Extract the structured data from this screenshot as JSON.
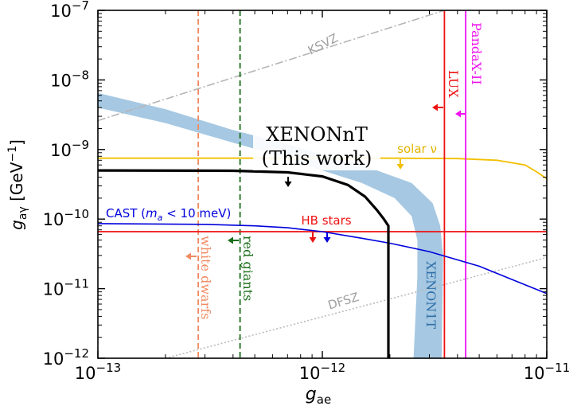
{
  "chart_data": {
    "type": "line",
    "xlabel_main": "g",
    "xlabel_sub": "ae",
    "ylabel_main": "g",
    "ylabel_sub": "aγ",
    "ylabel_unit": " [GeV",
    "ylabel_unit_exp": "−1",
    "ylabel_unit_close": "]",
    "x_scale": "log",
    "y_scale": "log",
    "xlim": [
      1e-13,
      1e-11
    ],
    "ylim": [
      1e-12,
      1e-07
    ],
    "x_ticks": [
      {
        "value": 1e-13,
        "base": "10",
        "exp": "−13"
      },
      {
        "value": 1e-12,
        "base": "10",
        "exp": "−12"
      },
      {
        "value": 1e-11,
        "base": "10",
        "exp": "−11"
      }
    ],
    "y_ticks": [
      {
        "value": 1e-12,
        "base": "10",
        "exp": "−12"
      },
      {
        "value": 1e-11,
        "base": "10",
        "exp": "−11"
      },
      {
        "value": 1e-10,
        "base": "10",
        "exp": "−10"
      },
      {
        "value": 1e-09,
        "base": "10",
        "exp": "−9"
      },
      {
        "value": 1e-08,
        "base": "10",
        "exp": "−8"
      },
      {
        "value": 1e-07,
        "base": "10",
        "exp": "−7"
      }
    ],
    "series": [
      {
        "name": "XENONnT",
        "label_line1": "XENONnT",
        "label_line2": "(This work)",
        "color": "#000000",
        "points": [
          [
            1e-13,
            5e-10
          ],
          [
            4e-13,
            4.95e-10
          ],
          [
            7e-13,
            4.7e-10
          ],
          [
            1e-12,
            4.1e-10
          ],
          [
            1.3e-12,
            3.1e-10
          ],
          [
            1.55e-12,
            2.1e-10
          ],
          [
            1.75e-12,
            1.35e-10
          ],
          [
            1.88e-12,
            1e-10
          ],
          [
            1.97e-12,
            8e-11
          ],
          [
            1.97e-12,
            1e-12
          ]
        ]
      },
      {
        "name": "XENON1T",
        "label": "XENON1T",
        "color": "#a6c8e2",
        "upper": [
          [
            1e-13,
            6.5e-09
          ],
          [
            2e-13,
            3.8e-09
          ],
          [
            4e-13,
            1.9e-09
          ],
          [
            7e-13,
            1.2e-09
          ],
          [
            1e-12,
            8.5e-10
          ],
          [
            1.5e-12,
            6e-10
          ],
          [
            2.5e-12,
            3.3e-10
          ],
          [
            3.1e-12,
            1.7e-10
          ],
          [
            3.35e-12,
            8e-11
          ],
          [
            3.45e-12,
            3e-11
          ],
          [
            3.4e-12,
            1e-12
          ]
        ],
        "lower": [
          [
            1e-13,
            4e-09
          ],
          [
            2e-13,
            2.4e-09
          ],
          [
            4e-13,
            1.25e-09
          ],
          [
            7e-13,
            7.5e-10
          ],
          [
            1e-12,
            5e-10
          ],
          [
            1.5e-12,
            3.3e-10
          ],
          [
            2.1e-12,
            2e-10
          ],
          [
            2.5e-12,
            1.1e-10
          ],
          [
            2.65e-12,
            5e-11
          ],
          [
            2.65e-12,
            1.5e-11
          ],
          [
            2.55e-12,
            1e-12
          ]
        ]
      },
      {
        "name": "CAST",
        "label_prefix": "CAST (",
        "label_var": "m",
        "label_var_sub": "a",
        "label_suffix": " < 10 meV)",
        "color": "#0000dd",
        "points": [
          [
            1e-13,
            8.6e-11
          ],
          [
            3e-13,
            8.4e-11
          ],
          [
            5e-13,
            8e-11
          ],
          [
            7e-13,
            7.5e-11
          ],
          [
            1e-12,
            6.6e-11
          ],
          [
            1.5e-12,
            5.3e-11
          ],
          [
            2e-12,
            4.5e-11
          ],
          [
            3e-12,
            3.4e-11
          ],
          [
            5e-12,
            2.1e-11
          ],
          [
            1e-11,
            8.5e-12
          ]
        ]
      },
      {
        "name": "solar ν",
        "label": "solar ν",
        "color": "#f2c000",
        "points": [
          [
            1e-13,
            7.5e-10
          ],
          [
            2e-12,
            7.5e-10
          ],
          [
            4e-12,
            7.4e-10
          ],
          [
            6e-12,
            7e-10
          ],
          [
            8e-12,
            6e-10
          ],
          [
            9e-12,
            4.8e-10
          ],
          [
            1e-11,
            3.8e-10
          ]
        ]
      },
      {
        "name": "HB stars",
        "label": "HB stars",
        "color": "#ee1111",
        "y_value": 6.6e-11
      },
      {
        "name": "LUX",
        "label": "LUX",
        "color": "#ee1111",
        "x_value": 3.5e-12
      },
      {
        "name": "PandaX-II",
        "label": "PandaX-II",
        "color": "#ee11ee",
        "x_value": 4.35e-12
      },
      {
        "name": "white dwarfs",
        "label": "white dwarfs",
        "color": "#f08a60",
        "x_value": 2.8e-13
      },
      {
        "name": "red giants",
        "label": "red giants",
        "color": "#1a6e1a",
        "x_value": 4.3e-13
      },
      {
        "name": "KSVZ",
        "label": "KSVZ",
        "color": "#b5b5b5",
        "points": [
          [
            1e-13,
            2.6e-09
          ],
          [
            3.5e-12,
            1e-07
          ]
        ]
      },
      {
        "name": "DFSZ",
        "label": "DFSZ",
        "color": "#bbbbbb",
        "points": [
          [
            2e-13,
            1e-12
          ],
          [
            1e-11,
            2.8e-11
          ]
        ]
      }
    ]
  }
}
